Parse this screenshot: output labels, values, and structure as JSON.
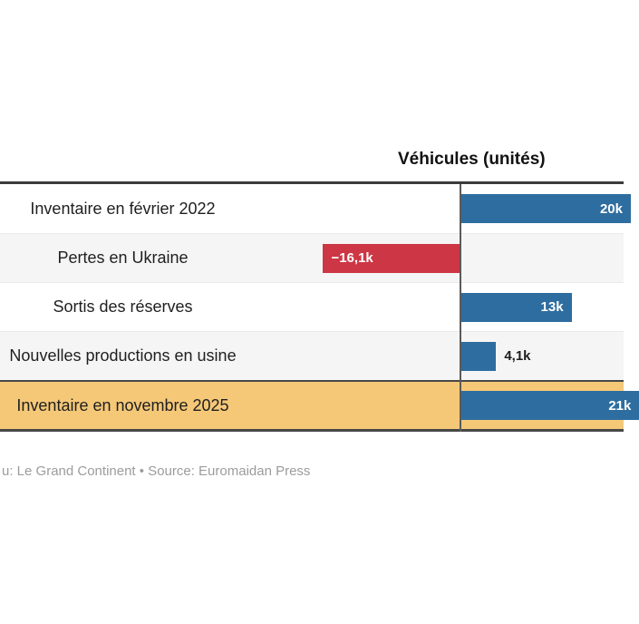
{
  "chart_data": {
    "type": "bar",
    "orientation": "horizontal",
    "value_column_header": "Véhicules (unités)",
    "categories": [
      "Inventaire en février 2022",
      "Pertes en Ukraine",
      "Sortis des réserves",
      "Nouvelles productions en usine",
      "Inventaire en novembre 2025"
    ],
    "values": [
      20000,
      -16100,
      13000,
      4100,
      21000
    ],
    "rows": [
      {
        "label": "Inventaire en février 2022",
        "value": 20000,
        "display": "20k",
        "bar_color": "#2e6d9f",
        "row_bg": "#ffffff",
        "label_style": "inside-right",
        "highlight": false
      },
      {
        "label": "Pertes en Ukraine",
        "value": -16100,
        "display": "−16,1k",
        "bar_color": "#cd3644",
        "row_bg": "#f5f5f5",
        "label_style": "inside-left",
        "highlight": false
      },
      {
        "label": "Sortis des réserves",
        "value": 13000,
        "display": "13k",
        "bar_color": "#2e6d9f",
        "row_bg": "#ffffff",
        "label_style": "inside-right",
        "highlight": false
      },
      {
        "label": "Nouvelles productions en usine",
        "value": 4100,
        "display": "4,1k",
        "bar_color": "#2e6d9f",
        "row_bg": "#f5f5f5",
        "label_style": "outside",
        "highlight": false
      },
      {
        "label": "Inventaire en novembre 2025",
        "value": 21000,
        "display": "21k",
        "bar_color": "#2e6d9f",
        "row_bg": "#f5c878",
        "label_style": "inside-right",
        "highlight": true
      }
    ],
    "baseline_value": 0,
    "legend": "none",
    "grid": "off",
    "highlight_row": "Inventaire en novembre 2025"
  },
  "colors": {
    "bar_positive": "#2e6d9f",
    "bar_negative": "#cd3644",
    "highlight_bg": "#f5c878",
    "stripe_bg": "#f5f5f5",
    "frame_line": "#3b3b3b",
    "baseline_line": "#5a5a5a"
  },
  "footer": {
    "attribution": "u: Le Grand Continent • Source: Euromaidan Press"
  }
}
